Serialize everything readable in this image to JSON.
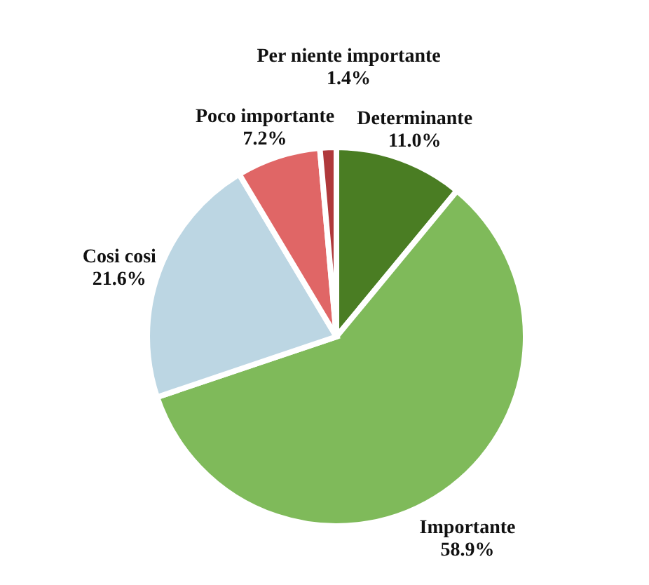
{
  "chart_data": {
    "type": "pie",
    "categories": [
      "Determinante",
      "Importante",
      "Cosi cosi",
      "Poco importante",
      "Per niente importante"
    ],
    "values": [
      11.0,
      58.9,
      21.6,
      7.2,
      1.4
    ],
    "value_labels": [
      "11.0%",
      "58.9%",
      "21.6%",
      "7.2%",
      "1.4%"
    ],
    "colors": [
      "#4a7d23",
      "#7fba5a",
      "#bcd6e3",
      "#e06666",
      "#b0393b"
    ]
  }
}
